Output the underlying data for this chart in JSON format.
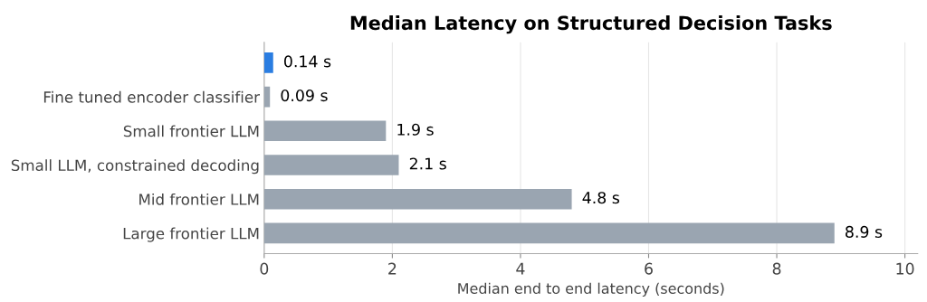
{
  "chart_data": {
    "type": "bar",
    "orientation": "horizontal",
    "title": "Median Latency on Structured Decision Tasks",
    "xlabel": "Median end to end latency (seconds)",
    "categories": [
      null,
      "Fine tuned encoder classifier",
      "Small frontier LLM",
      "Small LLM, constrained decoding",
      "Mid frontier LLM",
      "Large frontier LLM"
    ],
    "values": [
      0.14,
      0.09,
      1.9,
      2.1,
      4.8,
      8.9
    ],
    "colors": [
      "#2a7de1",
      "#9aa5b1",
      "#9aa5b1",
      "#9aa5b1",
      "#9aa5b1",
      "#9aa5b1"
    ],
    "value_labels": [
      "0.14 s",
      "0.09 s",
      "1.9 s",
      "2.1 s",
      "4.8 s",
      "8.9 s"
    ],
    "xlim": [
      0,
      10.2
    ],
    "xticks": [
      0,
      2,
      4,
      6,
      8,
      10
    ],
    "grid": "x"
  }
}
